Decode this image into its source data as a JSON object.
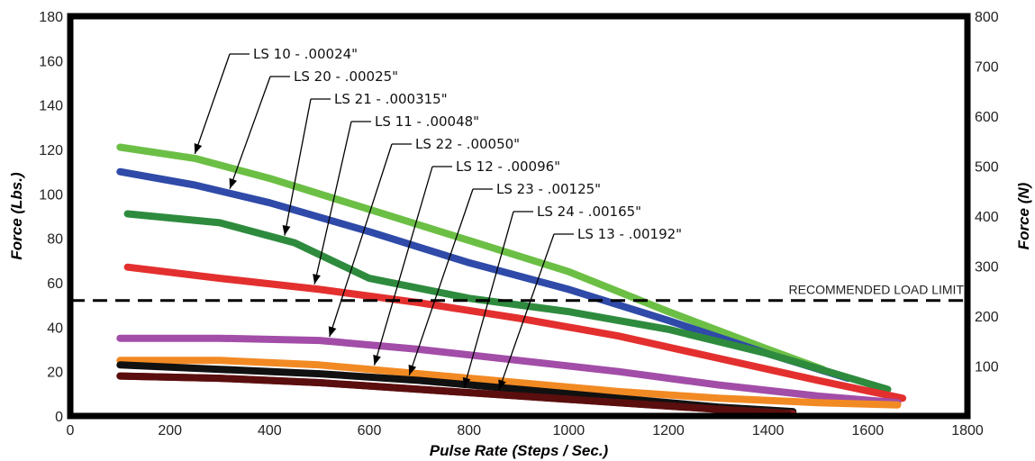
{
  "chart_data": {
    "type": "line",
    "title": "",
    "xlabel": "Pulse Rate (Steps / Sec.)",
    "ylabel": "Force (Lbs.)",
    "y2label": "Force (N)",
    "xlim": [
      0,
      1800
    ],
    "ylim": [
      0,
      180
    ],
    "y2lim": [
      0,
      800
    ],
    "xticks": [
      "0",
      "200",
      "400",
      "600",
      "800",
      "1000",
      "1200",
      "1400",
      "1600",
      "1800"
    ],
    "yticks": [
      "0",
      "20",
      "40",
      "60",
      "80",
      "100",
      "120",
      "140",
      "160",
      "180"
    ],
    "y2ticks": [
      "100",
      "200",
      "300",
      "400",
      "500",
      "600",
      "700",
      "800"
    ],
    "grid": false,
    "legend": "callouts",
    "reference_line": {
      "label": "RECOMMENDED LOAD LIMIT",
      "y": 52
    },
    "series": [
      {
        "name": "LS 10 - .00024\"",
        "color": "#6cbf45",
        "x": [
          100,
          250,
          400,
          600,
          800,
          1000,
          1200,
          1400,
          1510
        ],
        "y": [
          121,
          116,
          107,
          93,
          79,
          65,
          47,
          30,
          21
        ]
      },
      {
        "name": "LS 20 - .00025\"",
        "color": "#2f4aa8",
        "x": [
          100,
          250,
          400,
          600,
          800,
          1000,
          1200,
          1400,
          1560
        ],
        "y": [
          110,
          104,
          96,
          83,
          69,
          57,
          43,
          28,
          17
        ]
      },
      {
        "name": "LS 21 - .000315\"",
        "color": "#2e8b3e",
        "x": [
          115,
          300,
          450,
          600,
          800,
          1000,
          1200,
          1400,
          1640
        ],
        "y": [
          91,
          87,
          78,
          62,
          53,
          47,
          39,
          28,
          12
        ]
      },
      {
        "name": "LS 11 - .00048\"",
        "color": "#e3302f",
        "x": [
          115,
          300,
          500,
          700,
          900,
          1100,
          1300,
          1500,
          1670
        ],
        "y": [
          67,
          62,
          57,
          51,
          44,
          36,
          26,
          16,
          8
        ]
      },
      {
        "name": "LS 22 - .00050\"",
        "color": "#a24da8",
        "x": [
          100,
          300,
          500,
          700,
          900,
          1100,
          1300,
          1500,
          1660
        ],
        "y": [
          35,
          35,
          34,
          30,
          25,
          20,
          14,
          9,
          6
        ]
      },
      {
        "name": "LS 12 - .00096\"",
        "color": "#f28a24",
        "x": [
          100,
          300,
          500,
          700,
          900,
          1100,
          1300,
          1500,
          1660
        ],
        "y": [
          25,
          25,
          23,
          19,
          15,
          11,
          8,
          6,
          5
        ]
      },
      {
        "name": "LS 23 - .00125\"",
        "color": "#111111",
        "x": [
          100,
          300,
          500,
          700,
          900,
          1100,
          1300,
          1450
        ],
        "y": [
          23,
          21,
          19,
          16,
          12,
          8,
          4,
          2
        ]
      },
      {
        "name": "LS 24 - .00165\"",
        "color": "#8b1a1a",
        "x": [
          100,
          300,
          500,
          700,
          900,
          1100,
          1300,
          1450
        ],
        "y": [
          18,
          17,
          15,
          12,
          9,
          6,
          3,
          1
        ]
      },
      {
        "name": "LS 13 - .00192\"",
        "color": "#5a0e0e",
        "x": [
          100,
          300,
          500,
          700,
          900,
          1100,
          1300,
          1440
        ],
        "y": [
          18,
          17,
          15,
          12,
          9,
          6,
          3,
          1
        ]
      }
    ],
    "callouts": [
      {
        "series": "LS 10 - .00024\"",
        "text": "LS 10 - .00024\"",
        "x": 250
      },
      {
        "series": "LS 20 - .00025\"",
        "text": "LS 20 - .00025\"",
        "x": 320
      },
      {
        "series": "LS 21 - .000315\"",
        "text": "LS 21 - .000315\"",
        "x": 430
      },
      {
        "series": "LS 11 - .00048\"",
        "text": "LS 11 - .00048\"",
        "x": 490
      },
      {
        "series": "LS 22 - .00050\"",
        "text": "LS 22 - .00050\"",
        "x": 520
      },
      {
        "series": "LS 12 - .00096\"",
        "text": "LS 12 - .00096\"",
        "x": 610
      },
      {
        "series": "LS 23 - .00125\"",
        "text": "LS 23 - .00125\"",
        "x": 680
      },
      {
        "series": "LS 24 - .00165\"",
        "text": "LS 24 - .00165\"",
        "x": 790
      },
      {
        "series": "LS 13 - .00192\"",
        "text": "LS 13 - .00192\"",
        "x": 860
      }
    ]
  }
}
